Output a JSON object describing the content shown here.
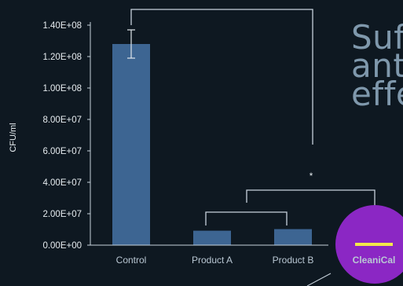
{
  "colors": {
    "background": "#0e1821",
    "bar": "#3d6592",
    "axis": "#c7d2dc",
    "bracket": "#c7d2dc",
    "tick_text": "#e6ecf0",
    "category_text": "#b9c7d3",
    "highlight_circle": "#8b27c4",
    "highlight_bar": "#f3e84a",
    "headline": "#7f98ac"
  },
  "headline": {
    "line1": "Suf",
    "line2": "ant",
    "line3": "effe"
  },
  "chart_data": {
    "type": "bar",
    "title": "",
    "xlabel": "",
    "ylabel": "CFU/ml",
    "categories": [
      "Control",
      "Product A",
      "Product B",
      "CleaniCal"
    ],
    "values": [
      128000000,
      9200000,
      10200000,
      1000000
    ],
    "error_bars": [
      9000000,
      null,
      null,
      null
    ],
    "ylim": [
      0,
      140000000
    ],
    "yticks": [
      "0.00E+00",
      "2.00E+07",
      "4.00E+07",
      "6.00E+07",
      "8.00E+07",
      "1.00E+08",
      "1.20E+08",
      "1.40E+08"
    ],
    "highlighted_category": "CleaniCal",
    "significance_marker": "*",
    "grid": false,
    "legend": "none"
  }
}
